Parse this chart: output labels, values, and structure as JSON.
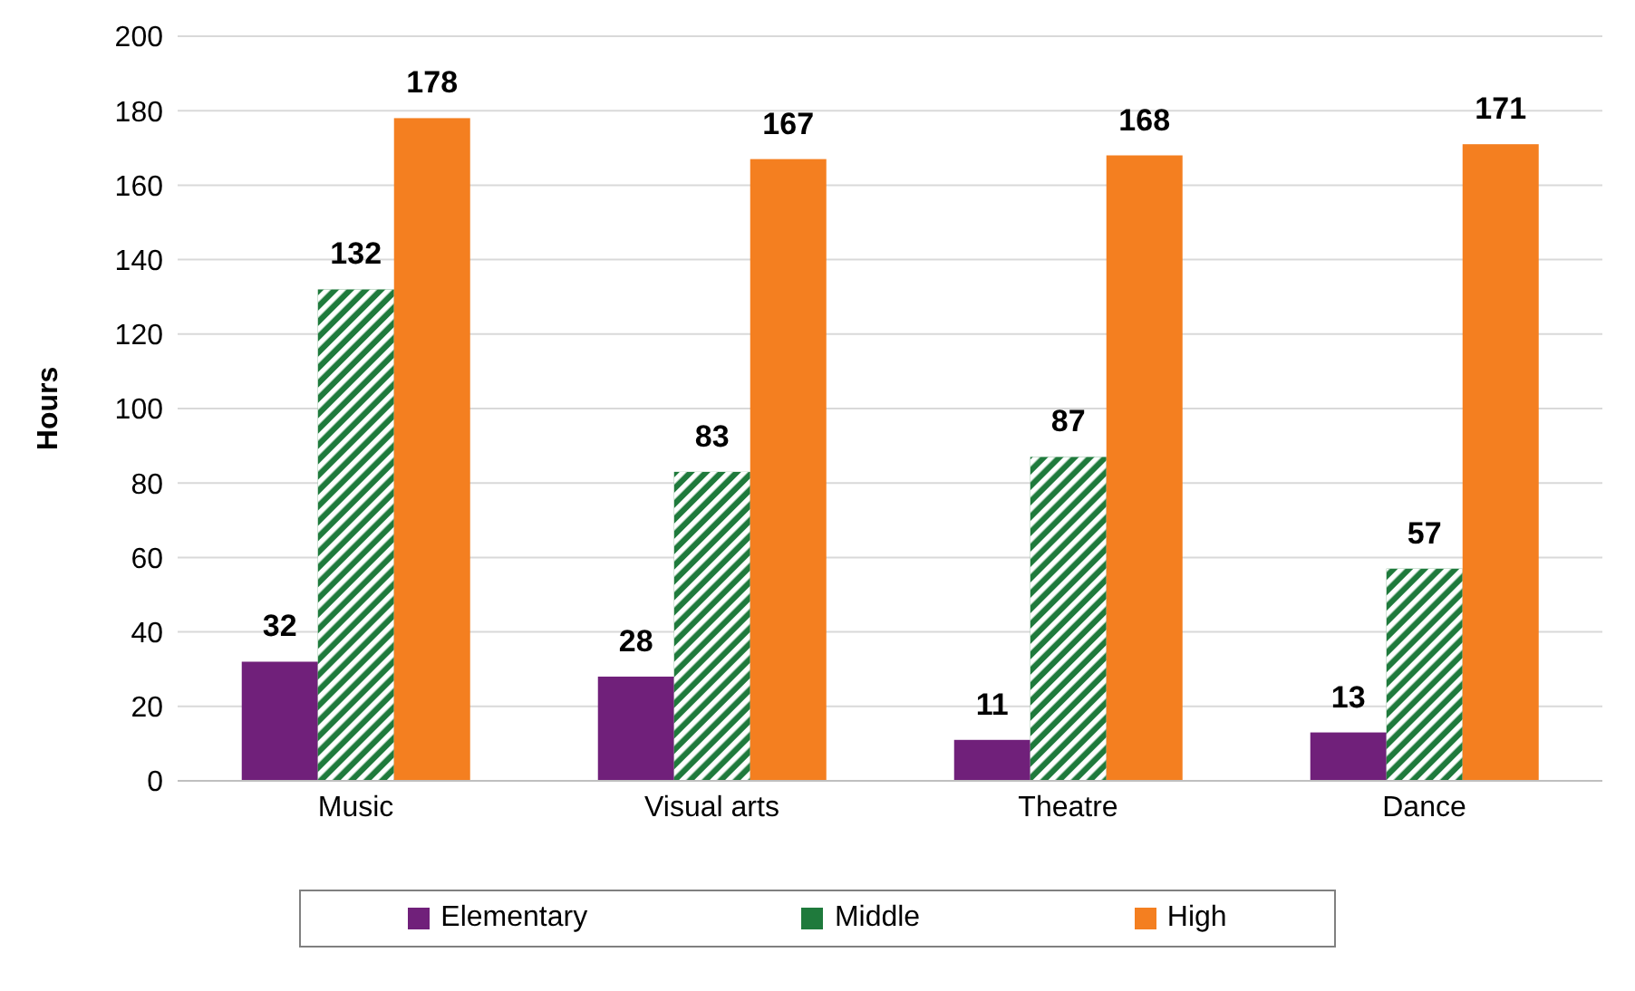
{
  "chart_data": {
    "type": "bar",
    "ylabel": "Hours",
    "categories": [
      "Music",
      "Visual arts",
      "Theatre",
      "Dance"
    ],
    "series": [
      {
        "name": "Elementary",
        "color": "#70207a",
        "values": [
          32,
          28,
          11,
          13
        ]
      },
      {
        "name": "Middle",
        "color": "#1f7a3c",
        "values": [
          132,
          83,
          87,
          57
        ]
      },
      {
        "name": "High",
        "color": "#f47f20",
        "values": [
          178,
          167,
          168,
          171
        ]
      }
    ],
    "ylim": [
      0,
      200
    ],
    "yticks": [
      0,
      20,
      40,
      60,
      80,
      100,
      120,
      140,
      160,
      180,
      200
    ],
    "grid": "y",
    "legend": "bottom",
    "data_labels": true
  }
}
